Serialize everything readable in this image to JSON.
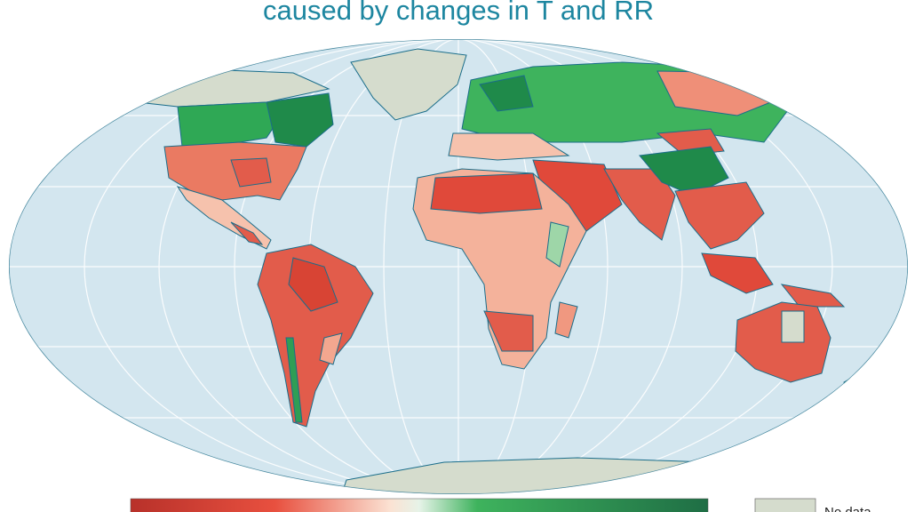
{
  "title": "caused by changes in T and RR",
  "legend": {
    "no_data": "No data"
  }
}
